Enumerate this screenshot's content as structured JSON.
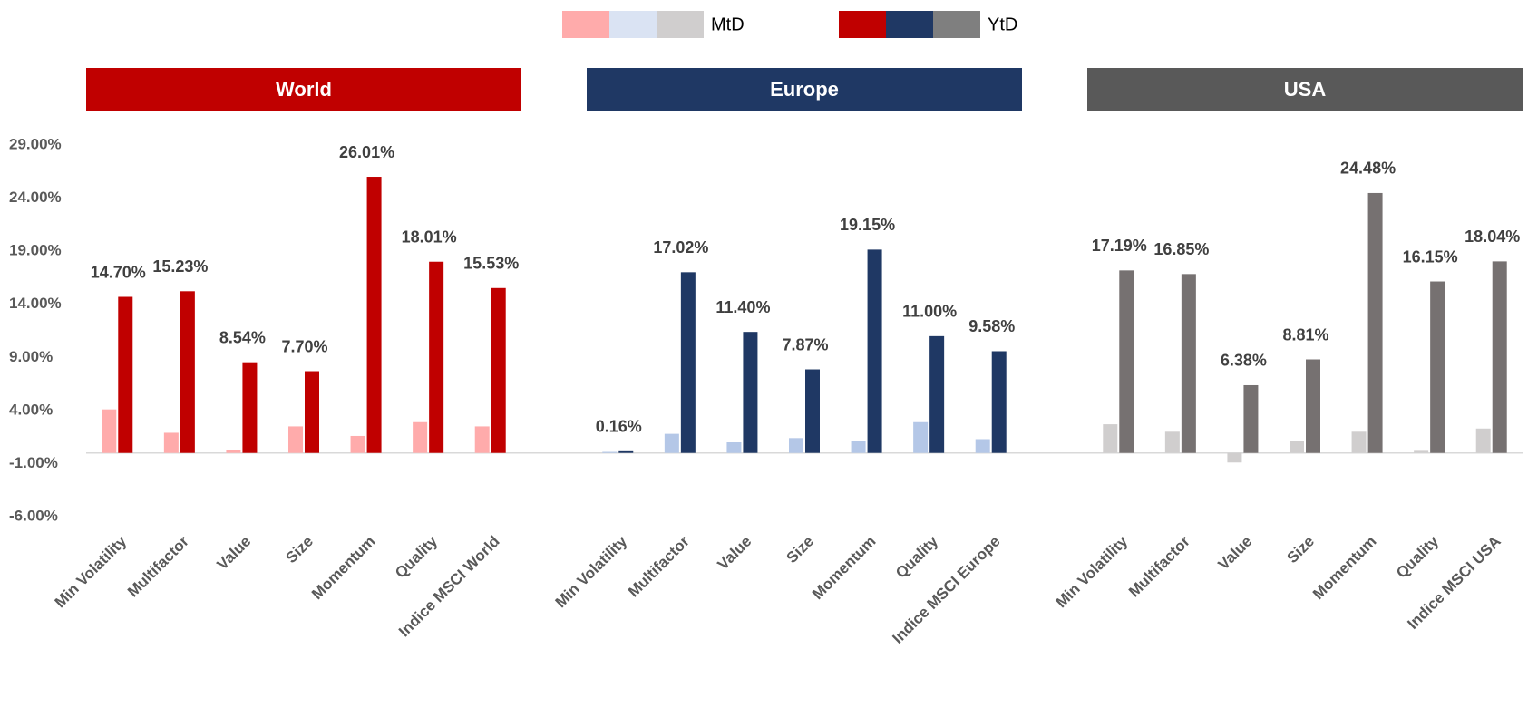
{
  "chart_data": {
    "type": "bar",
    "ylim": [
      -6,
      29
    ],
    "yticks": [
      {
        "value": -6,
        "label": "-6.00%"
      },
      {
        "value": -1,
        "label": "-1.00%"
      },
      {
        "value": 4,
        "label": "4.00%"
      },
      {
        "value": 9,
        "label": "9.00%"
      },
      {
        "value": 14,
        "label": "14.00%"
      },
      {
        "value": 19,
        "label": "19.00%"
      },
      {
        "value": 24,
        "label": "24.00%"
      },
      {
        "value": 29,
        "label": "29.00%"
      }
    ],
    "legend": [
      {
        "name": "MtD",
        "colors": [
          "#ffabab",
          "#dae3f3",
          "#d0cece"
        ]
      },
      {
        "name": "YtD",
        "colors": [
          "#c00000",
          "#1f3864",
          "#7f7f7f"
        ]
      }
    ],
    "groups": [
      {
        "title": "World",
        "header_color": "#c00000",
        "categories": [
          "Min Volatility",
          "Multifactor",
          "Value",
          "Size",
          "Momentum",
          "Quality",
          "Indice MSCI World"
        ],
        "series": [
          {
            "color": "#ffabab",
            "values": [
              4.1,
              1.9,
              0.3,
              2.5,
              1.6,
              2.9,
              2.5
            ]
          },
          {
            "color": "#c00000",
            "values": [
              14.7,
              15.23,
              8.54,
              7.7,
              26.01,
              18.01,
              15.53
            ],
            "value_labels": [
              "14.70%",
              "15.23%",
              "8.54%",
              "7.70%",
              "26.01%",
              "18.01%",
              "15.53%"
            ]
          }
        ]
      },
      {
        "title": "Europe",
        "header_color": "#1f3864",
        "categories": [
          "Min Volatility",
          "Multifactor",
          "Value",
          "Size",
          "Momentum",
          "Quality",
          "Indice MSCI Europe"
        ],
        "series": [
          {
            "color": "#b4c7e7",
            "values": [
              0.1,
              1.8,
              1.0,
              1.4,
              1.1,
              2.9,
              1.3
            ]
          },
          {
            "color": "#1f3864",
            "values": [
              0.16,
              17.02,
              11.4,
              7.87,
              19.15,
              11.0,
              9.58
            ],
            "value_labels": [
              "0.16%",
              "17.02%",
              "11.40%",
              "7.87%",
              "19.15%",
              "11.00%",
              "9.58%"
            ]
          }
        ]
      },
      {
        "title": "USA",
        "header_color": "#595959",
        "categories": [
          "Min Volatility",
          "Multifactor",
          "Value",
          "Size",
          "Momentum",
          "Quality",
          "Indice MSCI USA"
        ],
        "series": [
          {
            "color": "#d0cece",
            "values": [
              2.7,
              2.0,
              -0.9,
              1.1,
              2.0,
              0.2,
              2.3
            ]
          },
          {
            "color": "#767171",
            "values": [
              17.19,
              16.85,
              6.38,
              8.81,
              24.48,
              16.15,
              18.04
            ],
            "value_labels": [
              "17.19%",
              "16.85%",
              "6.38%",
              "8.81%",
              "24.48%",
              "16.15%",
              "18.04%"
            ]
          }
        ]
      }
    ]
  }
}
